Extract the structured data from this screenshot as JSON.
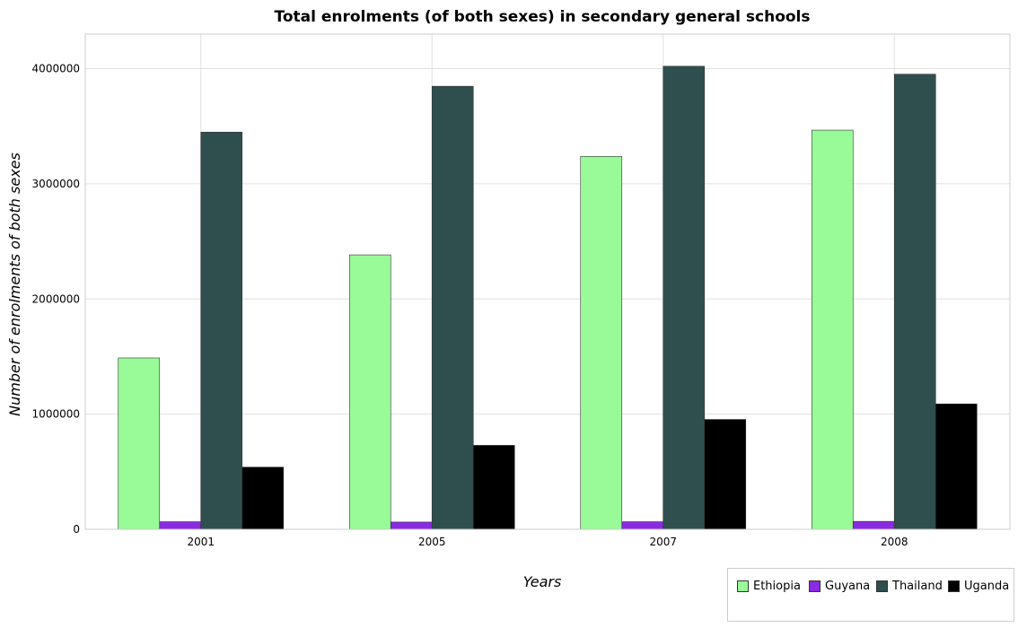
{
  "chart_data": {
    "type": "bar",
    "title": "Total enrolments (of both sexes) in secondary general schools",
    "xlabel": "Years",
    "ylabel": "Number of enrolments of both sexes",
    "categories": [
      "2001",
      "2005",
      "2007",
      "2008"
    ],
    "ylim": [
      0,
      4300000
    ],
    "yticks": [
      0,
      1000000,
      2000000,
      3000000,
      4000000
    ],
    "ytick_labels": [
      "0",
      "1000000",
      "2000000",
      "3000000",
      "4000000"
    ],
    "grid": true,
    "legend_position": "bottom-right",
    "series": [
      {
        "name": "Ethiopia",
        "color": "#98FB98",
        "values": [
          1488000,
          2383000,
          3238000,
          3466000
        ]
      },
      {
        "name": "Guyana",
        "color": "#8A2BE2",
        "values": [
          66000,
          63000,
          66000,
          69000
        ]
      },
      {
        "name": "Thailand",
        "color": "#2F4F4F",
        "values": [
          3449000,
          3847000,
          4021000,
          3952000
        ]
      },
      {
        "name": "Uganda",
        "color": "#000000",
        "values": [
          540000,
          729000,
          954000,
          1089000
        ]
      }
    ]
  }
}
